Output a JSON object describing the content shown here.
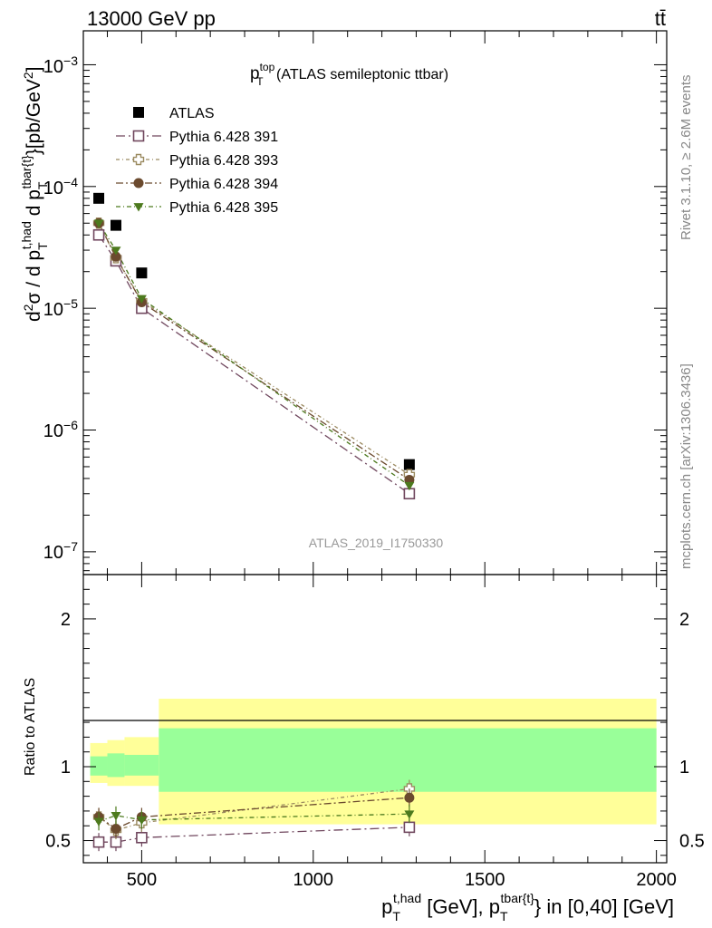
{
  "header": {
    "left": "13000 GeV pp",
    "right": "tt̄"
  },
  "side_labels": {
    "rivet": "Rivet 3.1.10, ≥ 2.6M events",
    "mcplots": "mcplots.cern.ch [arXiv:1306.3436]"
  },
  "title": {
    "main": "p",
    "sup": "top",
    "sub": "T",
    "rest": " (ATLAS semileptonic ttbar)"
  },
  "watermark": "ATLAS_2019_I1750330",
  "ylabel_main": "d²σ / d p_T^{t,had} d p_T^{tbar{t}}[pb/GeV²]",
  "ylabel_ratio": "Ratio to ATLAS",
  "xlabel": "p_T^{t,had} [GeV], p_T^{tbar{t}} in [0,40] [GeV]",
  "legend": [
    {
      "label": "ATLAS",
      "color": "#000000",
      "marker": "filled-square"
    },
    {
      "label": "Pythia 6.428 391",
      "color": "#70475e",
      "marker": "open-square"
    },
    {
      "label": "Pythia 6.428 393",
      "color": "#9b8a60",
      "marker": "open-cross"
    },
    {
      "label": "Pythia 6.428 394",
      "color": "#6b4a2e",
      "marker": "filled-circle"
    },
    {
      "label": "Pythia 6.428 395",
      "color": "#4d7a1e",
      "marker": "filled-triangle"
    }
  ],
  "chart_data": {
    "type": "scatter",
    "x_axis": {
      "range": [
        330,
        2030
      ],
      "ticks": [
        500,
        1000,
        1500,
        2000
      ],
      "tick_labels": [
        "500",
        "1000",
        "1500",
        "2000"
      ]
    },
    "y_axis_main": {
      "scale": "log",
      "range": [
        6.5e-08,
        0.0019
      ],
      "tick_labels": [
        "10⁻³",
        "10⁻⁴",
        "10⁻⁵",
        "10⁻⁶",
        "10⁻⁷"
      ]
    },
    "y_axis_ratio": {
      "range": [
        0.35,
        2.3
      ],
      "ticks": [
        0.5,
        1,
        2
      ],
      "tick_labels": [
        "0.5",
        "1",
        "2"
      ]
    },
    "x": [
      375,
      425,
      500,
      1280
    ],
    "bins": [
      [
        350,
        400
      ],
      [
        400,
        450
      ],
      [
        450,
        550
      ],
      [
        550,
        2000
      ]
    ],
    "series": [
      {
        "name": "ATLAS",
        "values": [
          8e-05,
          4.8e-05,
          1.95e-05,
          5.2e-07
        ]
      },
      {
        "name": "Pythia 6.428 391",
        "values": [
          4e-05,
          2.45e-05,
          1e-05,
          3e-07
        ],
        "ratio": [
          0.49,
          0.49,
          0.52,
          0.59
        ]
      },
      {
        "name": "Pythia 6.428 393",
        "values": [
          5e-05,
          2.6e-05,
          1.15e-05,
          4.3e-07
        ],
        "ratio": [
          0.66,
          0.57,
          0.62,
          0.85
        ]
      },
      {
        "name": "Pythia 6.428 394",
        "values": [
          5e-05,
          2.65e-05,
          1.12e-05,
          3.9e-07
        ],
        "ratio": [
          0.66,
          0.58,
          0.66,
          0.79
        ]
      },
      {
        "name": "Pythia 6.428 395",
        "values": [
          5e-05,
          3e-05,
          1.2e-05,
          3.5e-07
        ],
        "ratio": [
          0.63,
          0.67,
          0.64,
          0.68
        ]
      }
    ],
    "ratio_bands": {
      "green": [
        [
          0.94,
          1.07
        ],
        [
          0.93,
          1.09
        ],
        [
          0.94,
          1.08
        ],
        [
          0.83,
          1.26
        ]
      ],
      "yellow": [
        [
          0.89,
          1.16
        ],
        [
          0.87,
          1.18
        ],
        [
          0.87,
          1.2
        ],
        [
          0.61,
          1.46
        ]
      ]
    }
  }
}
